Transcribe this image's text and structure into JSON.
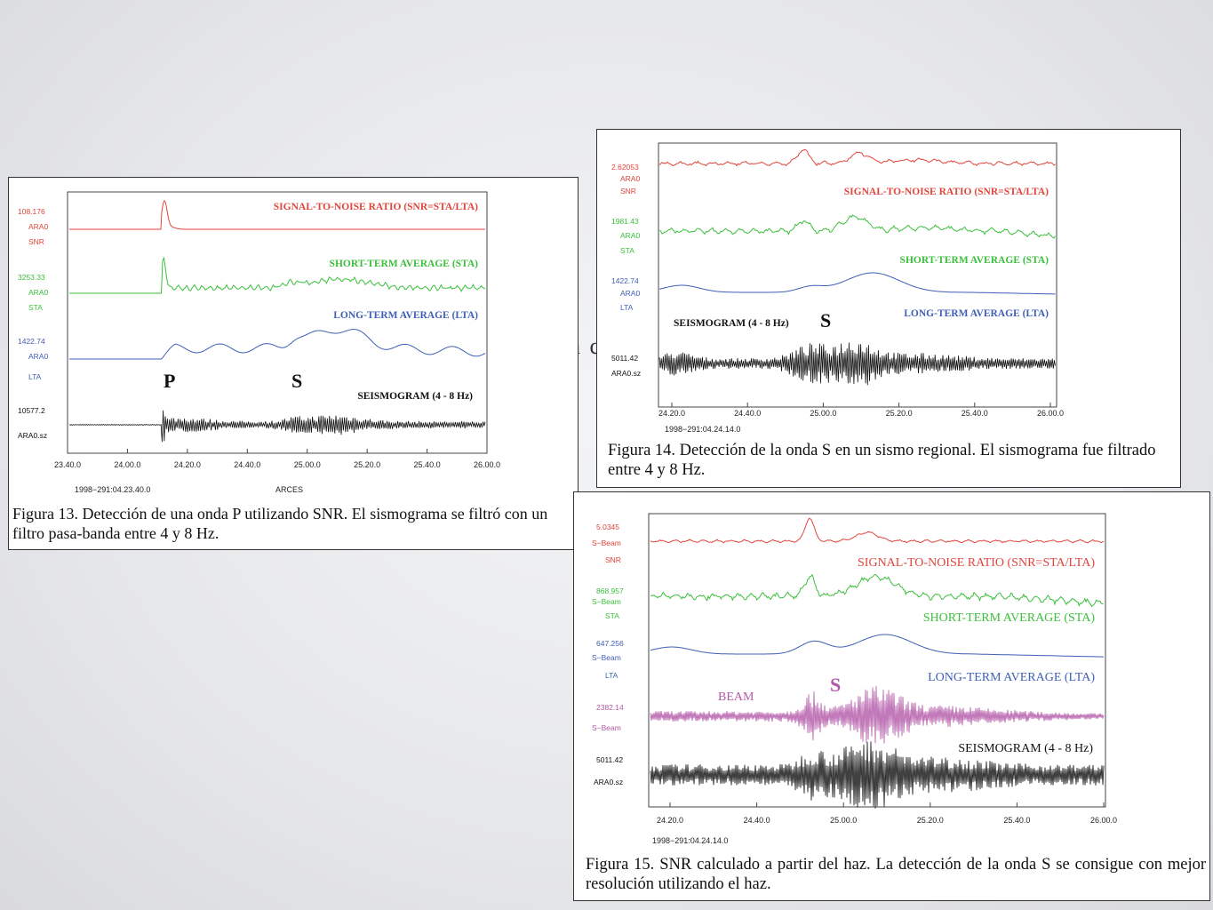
{
  "slide": {
    "partial_text": "n c"
  },
  "colors": {
    "snr": "#e0453c",
    "sta": "#3cbf3c",
    "lta": "#3f5fb7",
    "seis": "#111111",
    "beam": "#b358a8"
  },
  "figures": [
    {
      "id": "fig13",
      "traces": [
        {
          "key": "snr",
          "value": "108.176",
          "station": "ARA0",
          "kind": "SNR",
          "title": "SIGNAL-TO-NOISE RATIO (SNR=STA/LTA)"
        },
        {
          "key": "sta",
          "value": "3253.33",
          "station": "ARA0",
          "kind": "STA",
          "title": "SHORT-TERM AVERAGE (STA)"
        },
        {
          "key": "lta",
          "value": "1422.74",
          "station": "ARA0",
          "kind": "LTA",
          "title": "LONG-TERM AVERAGE (LTA)"
        },
        {
          "key": "seis",
          "value": "10577.2",
          "station": "ARA0.sz",
          "kind": "",
          "title": "SEISMOGRAM (4 - 8 Hz)"
        }
      ],
      "phase_labels": [
        "P",
        "S"
      ],
      "x_ticks": [
        "23.40.0",
        "24.00.0",
        "24.20.0",
        "24.40.0",
        "25.00.0",
        "25.20.0",
        "25.40.0",
        "26.00.0"
      ],
      "start_time": "1998−291:04.23.40.0",
      "array": "ARCES",
      "caption": "Figura 13. Detección de una onda P utilizando SNR. El sismograma se filtró con un filtro pasa-banda entre 4 y 8 Hz."
    },
    {
      "id": "fig14",
      "traces": [
        {
          "key": "snr",
          "value": "2.62053",
          "station": "ARA0",
          "kind": "SNR",
          "title": "SIGNAL-TO-NOISE RATIO (SNR=STA/LTA)"
        },
        {
          "key": "sta",
          "value": "1981.43",
          "station": "ARA0",
          "kind": "STA",
          "title": "SHORT-TERM AVERAGE (STA)"
        },
        {
          "key": "lta",
          "value": "1422.74",
          "station": "ARA0",
          "kind": "LTA",
          "title": "LONG-TERM AVERAGE (LTA)"
        },
        {
          "key": "seis",
          "value": "5011.42",
          "station": "ARA0.sz",
          "kind": "",
          "title": "SEISMOGRAM (4 - 8 Hz)"
        }
      ],
      "phase_labels": [
        "S"
      ],
      "x_ticks": [
        "24.20.0",
        "24.40.0",
        "25.00.0",
        "25.20.0",
        "25.40.0",
        "26.00.0"
      ],
      "start_time": "1998−291:04.24.14.0",
      "caption": "Figura 14. Detección de la onda S en un sismo regional. El sismograma fue filtrado entre 4 y 8 Hz."
    },
    {
      "id": "fig15",
      "traces": [
        {
          "key": "snr",
          "value": "5.0345",
          "station": "S−Beam",
          "kind": "SNR",
          "title": "SIGNAL-TO-NOISE RATIO (SNR=STA/LTA)"
        },
        {
          "key": "sta",
          "value": "868.957",
          "station": "S−Beam",
          "kind": "STA",
          "title": "SHORT-TERM AVERAGE (STA)"
        },
        {
          "key": "lta",
          "value": "647.256",
          "station": "S−Beam",
          "kind": "LTA",
          "title": "LONG-TERM AVERAGE (LTA)"
        },
        {
          "key": "beam",
          "value": "2382.14",
          "station": "S−Beam",
          "kind": "",
          "title": "BEAM"
        },
        {
          "key": "seis",
          "value": "5011.42",
          "station": "ARA0.sz",
          "kind": "",
          "title": "SEISMOGRAM (4 - 8 Hz)"
        }
      ],
      "phase_labels": [
        "S"
      ],
      "x_ticks": [
        "24.20.0",
        "24.40.0",
        "25.00.0",
        "25.20.0",
        "25.40.0",
        "26.00.0"
      ],
      "start_time": "1998−291:04.24.14.0",
      "caption": "Figura 15. SNR calculado a partir del haz. La detección de la onda S se consigue con mejor resolución utilizando el haz."
    }
  ]
}
